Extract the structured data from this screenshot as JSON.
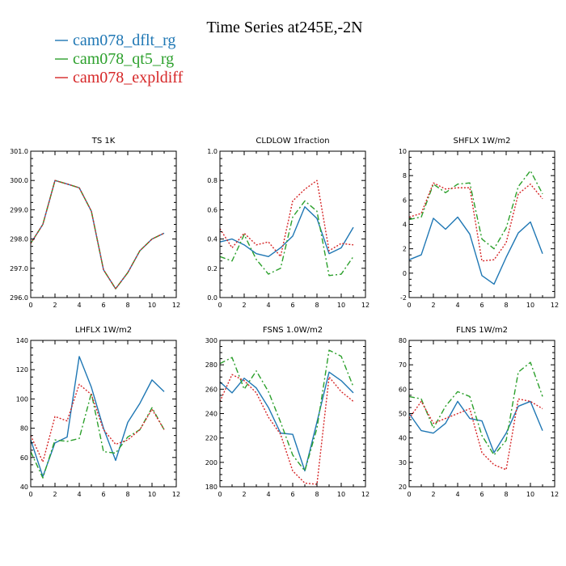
{
  "figure": {
    "title": "Time Series at245E,-2N",
    "legend": [
      {
        "label": "cam078_dflt_rg",
        "color": "#1f77b4"
      },
      {
        "label": "cam078_qt5_rg",
        "color": "#2ca02c"
      },
      {
        "label": "cam078_expldiff",
        "color": "#d62728"
      }
    ]
  },
  "chart_data": [
    {
      "type": "line",
      "title": "TS   1K",
      "xlim": [
        0,
        12
      ],
      "ylim": [
        296.0,
        301.0
      ],
      "xticks": [
        "0",
        "2",
        "4",
        "6",
        "8",
        "10",
        "12"
      ],
      "yticks": [
        "296.0",
        "297.0",
        "298.0",
        "299.0",
        "300.0",
        "301.0"
      ],
      "x": [
        0,
        1,
        2,
        3,
        4,
        5,
        6,
        7,
        8,
        9,
        10,
        11
      ],
      "series": [
        {
          "name": "cam078_dflt_rg",
          "values": [
            297.85,
            298.5,
            300.0,
            299.88,
            299.75,
            298.95,
            296.95,
            296.3,
            296.85,
            297.6,
            298.0,
            298.2
          ]
        },
        {
          "name": "cam078_qt5_rg",
          "values": [
            297.85,
            298.5,
            300.0,
            299.88,
            299.75,
            298.95,
            296.95,
            296.3,
            296.85,
            297.6,
            298.0,
            298.2
          ]
        },
        {
          "name": "cam078_expldiff",
          "values": [
            297.85,
            298.5,
            300.0,
            299.88,
            299.75,
            298.95,
            296.95,
            296.3,
            296.85,
            297.6,
            298.0,
            298.2
          ]
        }
      ]
    },
    {
      "type": "line",
      "title": "CLDLOW   1fraction",
      "xlim": [
        0,
        12
      ],
      "ylim": [
        0.0,
        1.0
      ],
      "xticks": [
        "0",
        "2",
        "4",
        "6",
        "8",
        "10",
        "12"
      ],
      "yticks": [
        "0.0",
        "0.2",
        "0.4",
        "0.6",
        "0.8",
        "1.0"
      ],
      "x": [
        0,
        1,
        2,
        3,
        4,
        5,
        6,
        7,
        8,
        9,
        10,
        11
      ],
      "series": [
        {
          "name": "cam078_dflt_rg",
          "values": [
            0.38,
            0.4,
            0.36,
            0.3,
            0.28,
            0.34,
            0.42,
            0.62,
            0.54,
            0.3,
            0.34,
            0.48
          ]
        },
        {
          "name": "cam078_qt5_rg",
          "values": [
            0.28,
            0.25,
            0.43,
            0.26,
            0.16,
            0.2,
            0.55,
            0.66,
            0.59,
            0.15,
            0.16,
            0.28
          ]
        },
        {
          "name": "cam078_expldiff",
          "values": [
            0.47,
            0.34,
            0.44,
            0.36,
            0.38,
            0.28,
            0.66,
            0.74,
            0.8,
            0.32,
            0.37,
            0.36
          ]
        }
      ]
    },
    {
      "type": "line",
      "title": "SHFLX   1W/m2",
      "xlim": [
        0,
        12
      ],
      "ylim": [
        -2,
        10
      ],
      "xticks": [
        "0",
        "2",
        "4",
        "6",
        "8",
        "10",
        "12"
      ],
      "yticks": [
        "-2",
        "0",
        "2",
        "4",
        "6",
        "8",
        "10"
      ],
      "x": [
        0,
        1,
        2,
        3,
        4,
        5,
        6,
        7,
        8,
        9,
        10,
        11
      ],
      "series": [
        {
          "name": "cam078_dflt_rg",
          "values": [
            1.1,
            1.5,
            4.5,
            3.6,
            4.6,
            3.2,
            -0.2,
            -0.9,
            1.3,
            3.3,
            4.2,
            1.6
          ]
        },
        {
          "name": "cam078_qt5_rg",
          "values": [
            4.4,
            4.6,
            7.3,
            6.6,
            7.3,
            7.4,
            2.8,
            2.0,
            3.7,
            7.1,
            8.4,
            6.5
          ]
        },
        {
          "name": "cam078_expldiff",
          "values": [
            4.6,
            4.9,
            7.4,
            6.9,
            7.0,
            7.0,
            1.0,
            1.1,
            2.5,
            6.5,
            7.3,
            6.1
          ]
        }
      ]
    },
    {
      "type": "line",
      "title": "LHFLX   1W/m2",
      "xlim": [
        0,
        12
      ],
      "ylim": [
        40,
        140
      ],
      "xticks": [
        "0",
        "2",
        "4",
        "6",
        "8",
        "10",
        "12"
      ],
      "yticks": [
        "40",
        "60",
        "80",
        "100",
        "120",
        "140"
      ],
      "x": [
        0,
        1,
        2,
        3,
        4,
        5,
        6,
        7,
        8,
        9,
        10,
        11
      ],
      "series": [
        {
          "name": "cam078_dflt_rg",
          "values": [
            72,
            47,
            70,
            74,
            129,
            108,
            80,
            58,
            84,
            97,
            113,
            105
          ]
        },
        {
          "name": "cam078_qt5_rg",
          "values": [
            64,
            46,
            72,
            71,
            73,
            104,
            64,
            63,
            74,
            79,
            94,
            79
          ]
        },
        {
          "name": "cam078_expldiff",
          "values": [
            75,
            57,
            88,
            85,
            110,
            103,
            79,
            69,
            72,
            79,
            93,
            79
          ]
        }
      ]
    },
    {
      "type": "line",
      "title": "FSNS   1.0W/m2",
      "xlim": [
        0,
        12
      ],
      "ylim": [
        180,
        300
      ],
      "xticks": [
        "0",
        "2",
        "4",
        "6",
        "8",
        "10",
        "12"
      ],
      "yticks": [
        "180",
        "200",
        "220",
        "240",
        "260",
        "280",
        "300"
      ],
      "x": [
        0,
        1,
        2,
        3,
        4,
        5,
        6,
        7,
        8,
        9,
        10,
        11
      ],
      "series": [
        {
          "name": "cam078_dflt_rg",
          "values": [
            266,
            257,
            269,
            261,
            245,
            224,
            223,
            193,
            233,
            274,
            267,
            257
          ]
        },
        {
          "name": "cam078_qt5_rg",
          "values": [
            281,
            286,
            260,
            275,
            258,
            233,
            206,
            193,
            228,
            292,
            287,
            262
          ]
        },
        {
          "name": "cam078_expldiff",
          "values": [
            250,
            272,
            267,
            257,
            237,
            223,
            193,
            183,
            182,
            270,
            258,
            250
          ]
        }
      ]
    },
    {
      "type": "line",
      "title": "FLNS   1W/m2",
      "xlim": [
        0,
        12
      ],
      "ylim": [
        20,
        80
      ],
      "xticks": [
        "0",
        "2",
        "4",
        "6",
        "8",
        "10",
        "12"
      ],
      "yticks": [
        "20",
        "30",
        "40",
        "50",
        "60",
        "70",
        "80"
      ],
      "x": [
        0,
        1,
        2,
        3,
        4,
        5,
        6,
        7,
        8,
        9,
        10,
        11
      ],
      "series": [
        {
          "name": "cam078_dflt_rg",
          "values": [
            50,
            43,
            42,
            46,
            55,
            48,
            47,
            34,
            42,
            53,
            55,
            43
          ]
        },
        {
          "name": "cam078_qt5_rg",
          "values": [
            57,
            56,
            44,
            53,
            59,
            57,
            41,
            33,
            39,
            67,
            71,
            57
          ]
        },
        {
          "name": "cam078_expldiff",
          "values": [
            48,
            55,
            46,
            48,
            50,
            52,
            34,
            29,
            27,
            56,
            55,
            52
          ]
        }
      ]
    }
  ]
}
